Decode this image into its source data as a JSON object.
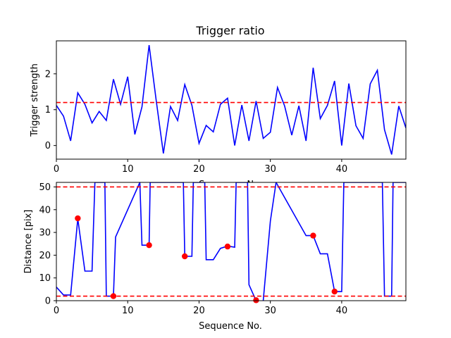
{
  "chart_data": [
    {
      "type": "line",
      "title": "Trigger ratio",
      "xlabel": "Sequence No.",
      "ylabel": "Trigger strength",
      "xlim": [
        0,
        49
      ],
      "ylim": [
        -0.38,
        2.92
      ],
      "xticks": [
        0,
        10,
        20,
        30,
        40
      ],
      "yticks": [
        0,
        1,
        2
      ],
      "grid": false,
      "series": [
        {
          "color": "#0000ff",
          "x": [
            0,
            1,
            2,
            3,
            4,
            5,
            6,
            7,
            8,
            9,
            10,
            11,
            12,
            13,
            14,
            15,
            16,
            17,
            18,
            19,
            20,
            21,
            22,
            23,
            24,
            25,
            26,
            27,
            28,
            29,
            30,
            31,
            32,
            33,
            34,
            35,
            36,
            37,
            38,
            39,
            40,
            41,
            42,
            43,
            44,
            45,
            46,
            47,
            48,
            49
          ],
          "values": [
            1.12,
            0.82,
            0.13,
            1.47,
            1.15,
            0.63,
            0.95,
            0.7,
            1.85,
            1.15,
            1.92,
            0.31,
            1.08,
            2.8,
            1.25,
            -0.22,
            1.09,
            0.7,
            1.7,
            1.12,
            0.06,
            0.56,
            0.38,
            1.15,
            1.32,
            0.0,
            1.13,
            0.13,
            1.24,
            0.2,
            0.37,
            1.62,
            1.1,
            0.29,
            1.11,
            0.13,
            2.17,
            0.75,
            1.12,
            1.8,
            0.0,
            1.73,
            0.55,
            0.2,
            1.72,
            2.1,
            0.44,
            -0.25,
            1.1,
            0.49
          ]
        }
      ],
      "hlines": [
        {
          "y": 1.2,
          "color": "#ff0000",
          "style": "dashed"
        }
      ]
    },
    {
      "type": "line",
      "title": "",
      "xlabel": "Sequence No.",
      "ylabel": "Distance [pix]",
      "xlim": [
        0,
        49
      ],
      "ylim": [
        0,
        52
      ],
      "xticks": [
        0,
        10,
        20,
        30,
        40
      ],
      "yticks": [
        0,
        10,
        20,
        30,
        40,
        50
      ],
      "grid": false,
      "series": [
        {
          "color": "#0000ff",
          "x": [
            0,
            1,
            2,
            3,
            4,
            5,
            5.4,
            6.5,
            6.8,
            7,
            8,
            8.3,
            11.7,
            12,
            13,
            13.15,
            13.5,
            17.8,
            18,
            19,
            19.2,
            19.5,
            20.8,
            21,
            22,
            23,
            24,
            25,
            25.2,
            26.8,
            27,
            28,
            28.2,
            28.4,
            29,
            30,
            30.8,
            35,
            36,
            37,
            38,
            39,
            40,
            40.3,
            45.7,
            46,
            47,
            47.2,
            49
          ],
          "values": [
            6,
            2.5,
            2.5,
            36,
            13,
            13,
            52,
            52,
            52,
            2,
            2,
            28,
            52,
            24.4,
            24.4,
            52,
            52,
            52,
            19.5,
            19.5,
            52,
            52,
            52,
            18,
            18,
            23,
            24,
            23.5,
            52,
            52,
            7,
            0,
            -2,
            -1,
            0,
            35,
            52,
            28.6,
            28.6,
            20.6,
            20.6,
            4,
            4,
            52,
            52,
            2,
            2,
            52,
            52
          ]
        },
        {
          "name": "markers",
          "type": "scatter",
          "color": "#ff0000",
          "x": [
            3,
            8,
            13,
            18,
            24,
            28,
            36,
            39
          ],
          "values": [
            36.2,
            2.0,
            24.4,
            19.5,
            23.8,
            0.2,
            28.6,
            4.0
          ]
        }
      ],
      "hlines": [
        {
          "y": 50,
          "color": "#ff0000",
          "style": "dashed"
        },
        {
          "y": 2,
          "color": "#ff0000",
          "style": "dashed"
        }
      ]
    }
  ]
}
